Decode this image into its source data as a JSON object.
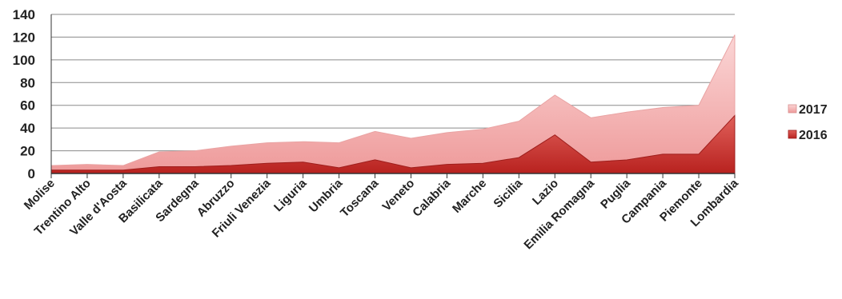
{
  "chart_data": {
    "type": "area",
    "stacked": true,
    "categories": [
      "Molise",
      "Trentino Alto",
      "Valle d'Aosta",
      "Basilicata",
      "Sardegna",
      "Abruzzo",
      "Friuli Venezia",
      "Liguria",
      "Umbria",
      "Toscana",
      "Veneto",
      "Calabria",
      "Marche",
      "Sicilia",
      "Lazio",
      "Emilia Romagna",
      "Puglia",
      "Campania",
      "Piemonte",
      "Lombardia"
    ],
    "series": [
      {
        "name": "2016",
        "color": "#c8302c",
        "values": [
          3,
          3,
          3,
          6,
          6,
          7,
          9,
          10,
          5,
          12,
          5,
          8,
          9,
          14,
          34,
          10,
          12,
          17,
          17,
          51
        ]
      },
      {
        "name": "2017",
        "color": "#f4b3b3",
        "values": [
          4,
          5,
          4,
          13,
          14,
          17,
          18,
          18,
          22,
          25,
          26,
          28,
          30,
          32,
          35,
          39,
          42,
          41,
          43,
          71
        ]
      }
    ],
    "title": "",
    "xlabel": "",
    "ylabel": "",
    "ylim": [
      0,
      140
    ],
    "yticks": [
      0,
      20,
      40,
      60,
      80,
      100,
      120,
      140
    ],
    "grid": true,
    "legend_position": "right"
  }
}
